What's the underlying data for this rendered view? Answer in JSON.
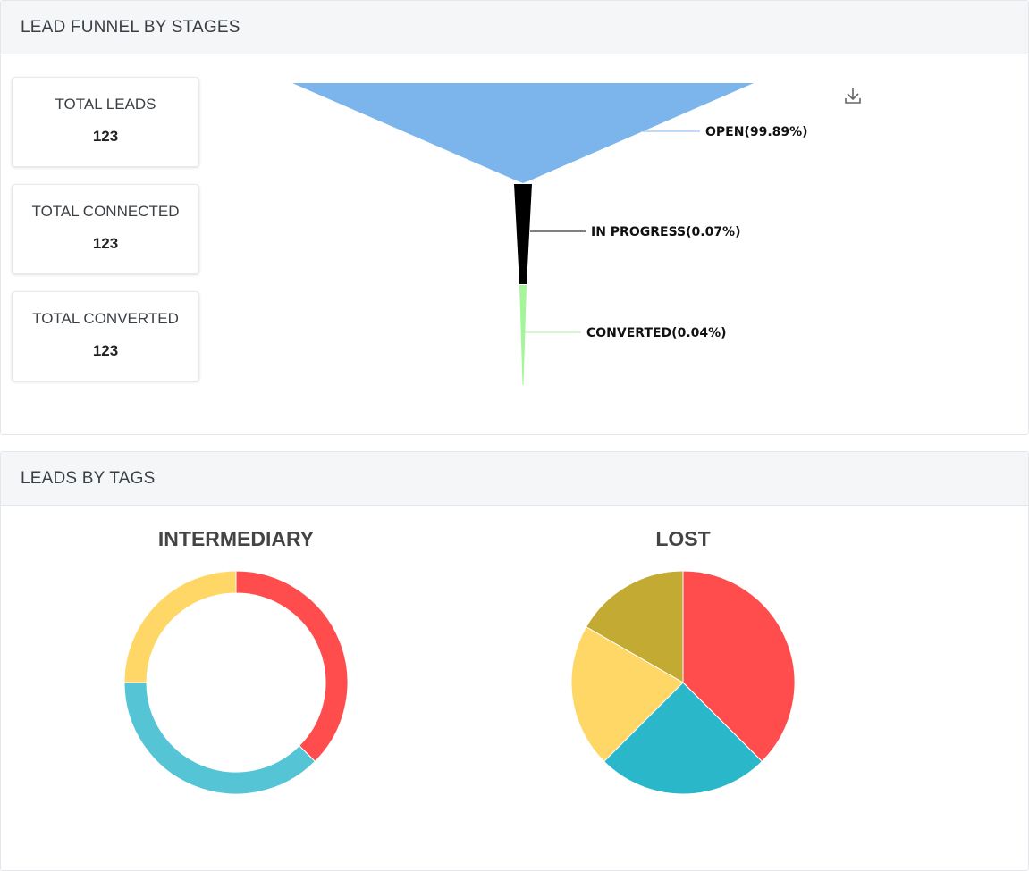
{
  "funnel_panel": {
    "title": "LEAD FUNNEL BY STAGES",
    "download_icon": "download-icon"
  },
  "stats": [
    {
      "label": "TOTAL LEADS",
      "value": "123"
    },
    {
      "label": "TOTAL CONNECTED",
      "value": "123"
    },
    {
      "label": "TOTAL CONVERTED",
      "value": "123"
    }
  ],
  "tags_panel": {
    "title": "LEADS BY TAGS"
  },
  "chart_data": [
    {
      "type": "funnel",
      "stages": [
        {
          "name": "OPEN",
          "percent": 99.89,
          "label": "OPEN(99.89%)",
          "color": "#7cb5ec"
        },
        {
          "name": "IN PROGRESS",
          "percent": 0.07,
          "label": "IN PROGRESS(0.07%)",
          "color": "#000000"
        },
        {
          "name": "CONVERTED",
          "percent": 0.04,
          "label": "CONVERTED(0.04%)",
          "color": "#a5f59b"
        }
      ]
    },
    {
      "type": "pie",
      "title": "INTERMEDIARY",
      "donut": true,
      "slices": [
        {
          "value": 37.5,
          "color": "#ff4d4d"
        },
        {
          "value": 37.5,
          "color": "#55c4d4"
        },
        {
          "value": 25,
          "color": "#fed766"
        }
      ]
    },
    {
      "type": "pie",
      "title": "LOST",
      "donut": false,
      "slices": [
        {
          "value": 37.5,
          "color": "#ff4d4d"
        },
        {
          "value": 25,
          "color": "#2ab7ca"
        },
        {
          "value": 20.8,
          "color": "#fed766"
        },
        {
          "value": 16.7,
          "color": "#c3aa33"
        }
      ]
    }
  ]
}
